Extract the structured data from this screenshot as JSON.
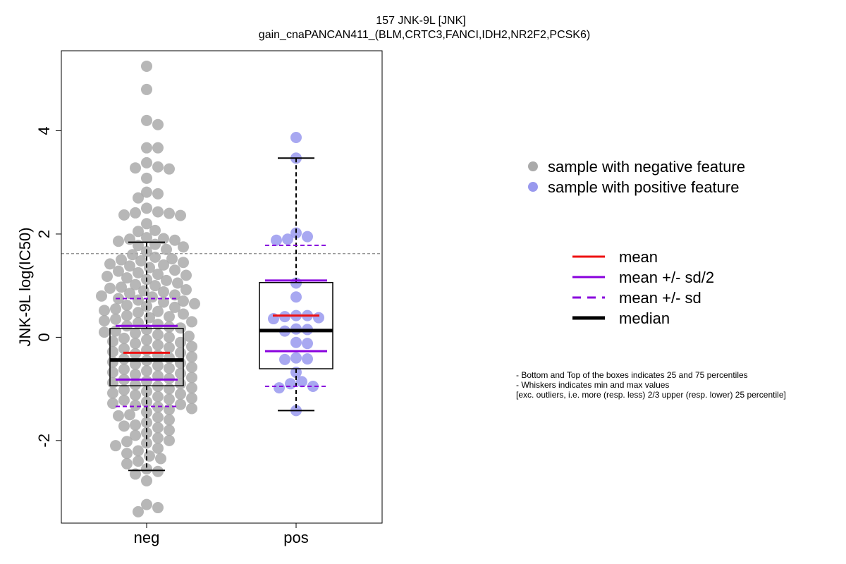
{
  "chart_data": {
    "type": "box-swarm",
    "title": "157 JNK-9L [JNK]",
    "subtitle": "gain_cnaPANCAN411_(BLM,CRTC3,FANCI,IDH2,NR2F2,PCSK6)",
    "ylabel": "JNK-9L log(IC50)",
    "xlabel": "",
    "ylim": [
      -3.6,
      5.55
    ],
    "y_ticks": [
      -2,
      0,
      2,
      4
    ],
    "y_tick_labels": [
      "-2",
      "0",
      "2",
      "4"
    ],
    "categories": [
      "neg",
      "pos"
    ],
    "threshold_line": 1.62,
    "groups": [
      {
        "category": "neg",
        "color": "#aaaaaa",
        "box": {
          "q1": -0.94,
          "median": -0.44,
          "q3": 0.17,
          "whisker_low": -2.58,
          "whisker_high": 1.84
        },
        "mean": -0.3,
        "mean_minus_half_sd": -0.82,
        "mean_plus_half_sd": 0.22,
        "mean_minus_sd": -1.34,
        "mean_plus_sd": 0.75,
        "points": [
          5.25,
          4.8,
          4.2,
          4.12,
          3.67,
          3.67,
          3.38,
          3.3,
          3.28,
          3.26,
          3.08,
          2.81,
          2.78,
          2.7,
          2.5,
          2.43,
          2.41,
          2.4,
          2.37,
          2.36,
          2.2,
          2.07,
          2.05,
          1.93,
          1.91,
          1.9,
          1.88,
          1.86,
          1.8,
          1.78,
          1.75,
          1.7,
          1.66,
          1.6,
          1.55,
          1.52,
          1.5,
          1.48,
          1.45,
          1.42,
          1.4,
          1.38,
          1.35,
          1.3,
          1.28,
          1.25,
          1.22,
          1.2,
          1.18,
          1.15,
          1.12,
          1.1,
          1.05,
          1.02,
          1.0,
          0.97,
          0.95,
          0.92,
          0.9,
          0.88,
          0.85,
          0.82,
          0.8,
          0.78,
          0.75,
          0.72,
          0.7,
          0.68,
          0.65,
          0.62,
          0.6,
          0.58,
          0.55,
          0.52,
          0.5,
          0.48,
          0.45,
          0.42,
          0.4,
          0.38,
          0.35,
          0.32,
          0.3,
          0.28,
          0.25,
          0.22,
          0.2,
          0.18,
          0.15,
          0.12,
          0.1,
          0.08,
          0.05,
          0.02,
          0.0,
          -0.02,
          -0.05,
          -0.08,
          -0.1,
          -0.12,
          -0.15,
          -0.18,
          -0.2,
          -0.22,
          -0.25,
          -0.28,
          -0.3,
          -0.32,
          -0.35,
          -0.38,
          -0.4,
          -0.42,
          -0.45,
          -0.48,
          -0.5,
          -0.52,
          -0.55,
          -0.58,
          -0.6,
          -0.62,
          -0.65,
          -0.68,
          -0.7,
          -0.72,
          -0.75,
          -0.78,
          -0.8,
          -0.82,
          -0.85,
          -0.88,
          -0.9,
          -0.92,
          -0.95,
          -0.98,
          -1.0,
          -1.02,
          -1.05,
          -1.08,
          -1.1,
          -1.12,
          -1.15,
          -1.18,
          -1.2,
          -1.22,
          -1.25,
          -1.28,
          -1.3,
          -1.32,
          -1.35,
          -1.38,
          -1.4,
          -1.45,
          -1.5,
          -1.52,
          -1.55,
          -1.6,
          -1.65,
          -1.7,
          -1.72,
          -1.75,
          -1.8,
          -1.85,
          -1.9,
          -1.95,
          -2.0,
          -2.02,
          -2.05,
          -2.1,
          -2.15,
          -2.2,
          -2.25,
          -2.3,
          -2.35,
          -2.4,
          -2.45,
          -2.55,
          -2.6,
          -2.65,
          -2.78,
          -3.24,
          -3.3,
          -3.38
        ]
      },
      {
        "category": "pos",
        "color": "#9999ee",
        "box": {
          "q1": -0.61,
          "median": 0.13,
          "q3": 1.06,
          "whisker_low": -1.42,
          "whisker_high": 3.47
        },
        "mean": 0.42,
        "mean_minus_half_sd": -0.27,
        "mean_plus_half_sd": 1.1,
        "mean_minus_sd": -0.95,
        "mean_plus_sd": 1.78,
        "points": [
          3.87,
          3.47,
          2.02,
          1.95,
          1.9,
          1.88,
          1.05,
          0.78,
          0.42,
          0.42,
          0.4,
          0.38,
          0.36,
          0.16,
          0.15,
          0.12,
          -0.1,
          -0.12,
          -0.4,
          -0.42,
          -0.43,
          -0.68,
          -0.86,
          -0.9,
          -0.95,
          -0.98,
          -1.42
        ]
      }
    ],
    "legend_points": [
      {
        "label": "sample with negative feature",
        "color": "#aaaaaa"
      },
      {
        "label": "sample with positive feature",
        "color": "#9999ee"
      }
    ],
    "legend_lines": [
      {
        "label": "mean",
        "color": "#ee1111",
        "style": "solid"
      },
      {
        "label": "mean +/- sd/2",
        "color": "#8800dd",
        "style": "solid"
      },
      {
        "label": "mean +/- sd",
        "color": "#8800dd",
        "style": "dashed"
      },
      {
        "label": "median",
        "color": "#000000",
        "style": "thick"
      }
    ],
    "notes": [
      "- Bottom and Top of the boxes indicates 25 and 75 percentiles",
      "- Whiskers indicates min and max values",
      "[exc. outliers, i.e. more (resp. less) 2/3 upper (resp. lower) 25 percentile]"
    ]
  }
}
